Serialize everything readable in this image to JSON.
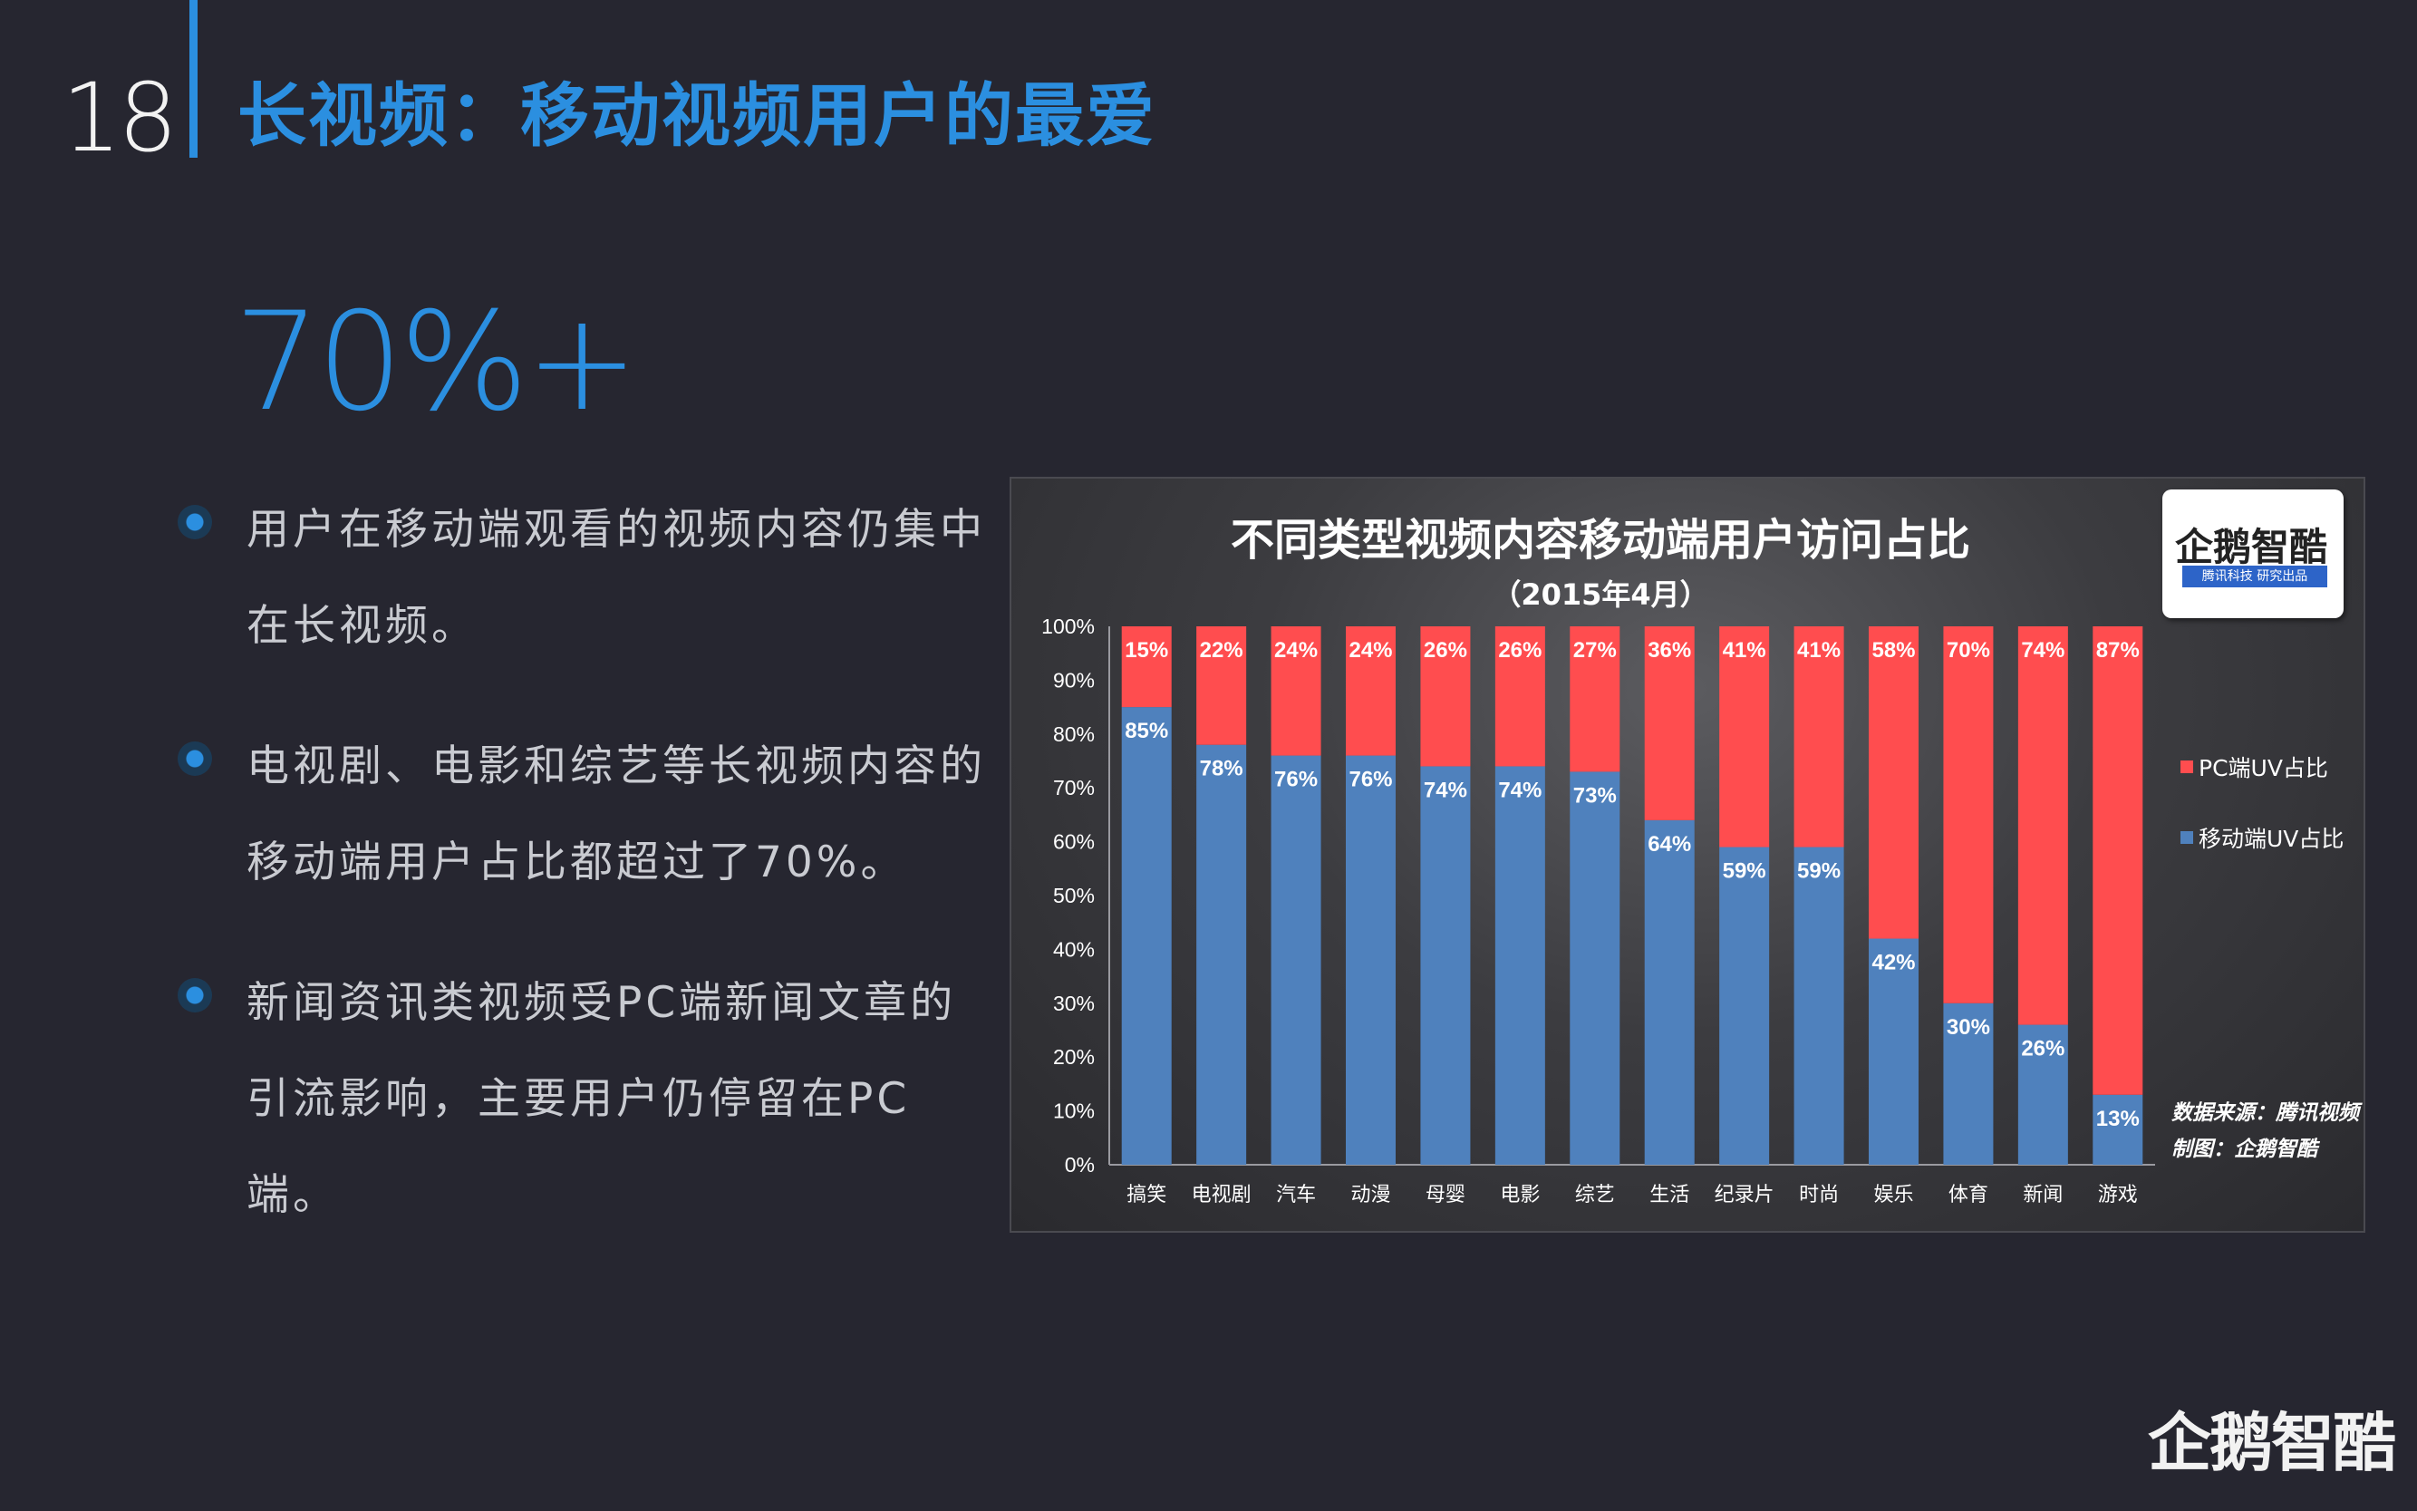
{
  "page_number": "18",
  "slide_title": "长视频：移动视频用户的最爱",
  "big_stat": "70%+",
  "bullets": [
    {
      "line1": "用户在移动端观看的视频内容仍集中",
      "line2": "在长视频。"
    },
    {
      "line1": "电视剧、电影和综艺等长视频内容的",
      "line2": "移动端用户占比都超过了70%。"
    },
    {
      "line1": "新闻资讯类视频受PC端新闻文章的",
      "line2": "引流影响，主要用户仍停留在PC端。"
    }
  ],
  "logo": {
    "mark": "企鹅智酷",
    "tag": "腾讯科技  研究出品"
  },
  "bottom_logo": "企鹅智酷",
  "source_note": {
    "line1": "数据来源：腾讯视频",
    "line2": "制图：企鹅智酷"
  },
  "colors": {
    "accent": "#2b8fe0",
    "mobile": "#4f81bd",
    "pc": "#ff4d4f"
  },
  "chart_data": {
    "type": "bar",
    "stacked": true,
    "title": "不同类型视频内容移动端用户访问占比",
    "subtitle": "（2015年4月）",
    "categories": [
      "搞笑",
      "电视剧",
      "汽车",
      "动漫",
      "母婴",
      "电影",
      "综艺",
      "生活",
      "纪录片",
      "时尚",
      "娱乐",
      "体育",
      "新闻",
      "游戏"
    ],
    "series": [
      {
        "name": "移动端UV占比",
        "color": "#4f81bd",
        "values": [
          85,
          78,
          76,
          76,
          74,
          74,
          73,
          64,
          59,
          59,
          42,
          30,
          26,
          13
        ]
      },
      {
        "name": "PC端UV占比",
        "color": "#ff4d4f",
        "values": [
          15,
          22,
          24,
          24,
          26,
          26,
          27,
          36,
          41,
          41,
          58,
          70,
          74,
          87
        ]
      }
    ],
    "ylim": [
      0,
      100
    ],
    "yticks": [
      "0%",
      "10%",
      "20%",
      "30%",
      "40%",
      "50%",
      "60%",
      "70%",
      "80%",
      "90%",
      "100%"
    ],
    "legend": "right",
    "grid": false
  }
}
